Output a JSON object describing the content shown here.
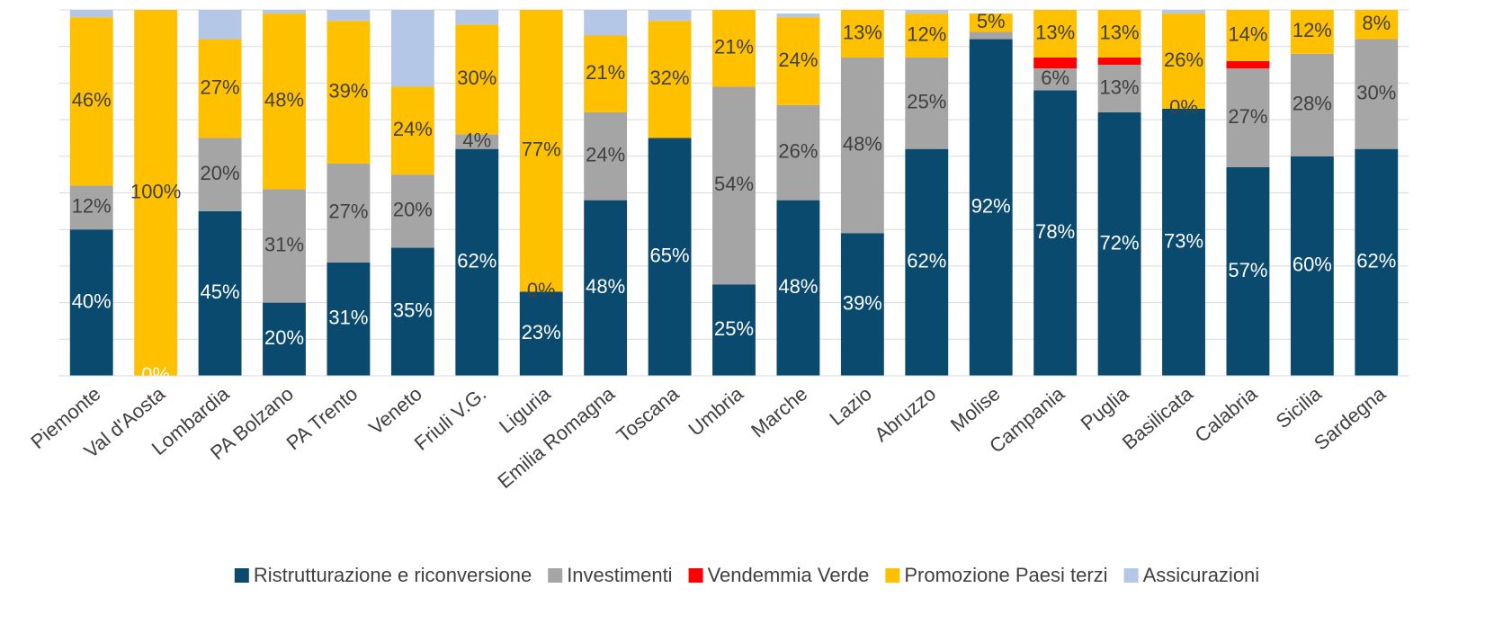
{
  "chart_data": {
    "type": "stacked_bar",
    "categories": [
      "Piemonte",
      "Val d'Aosta",
      "Lombardia",
      "PA Bolzano",
      "PA Trento",
      "Veneto",
      "Friuli V.G.",
      "Liguria",
      "Emilia Romagna",
      "Toscana",
      "Umbria",
      "Marche",
      "Lazio",
      "Abruzzo",
      "Molise",
      "Campania",
      "Puglia",
      "Basilicata",
      "Calabria",
      "Sicilia",
      "Sardegna"
    ],
    "series": [
      {
        "name": "Ristrutturazione e riconversione",
        "color": "#0b4a6f",
        "values": [
          40,
          0,
          45,
          20,
          31,
          35,
          62,
          23,
          48,
          65,
          25,
          48,
          39,
          62,
          92,
          78,
          72,
          73,
          57,
          60,
          62
        ],
        "value_labels": [
          "40%",
          "0%",
          "45%",
          "20%",
          "31%",
          "35%",
          "62%",
          "23%",
          "48%",
          "65%",
          "25%",
          "48%",
          "39%",
          "62%",
          "92%",
          "78%",
          "72%",
          "73%",
          "57%",
          "60%",
          "62%"
        ]
      },
      {
        "name": "Investimenti",
        "color": "#a5a5a5",
        "values": [
          12,
          0,
          20,
          31,
          27,
          20,
          4,
          0,
          24,
          0,
          54,
          26,
          48,
          25,
          2,
          6,
          13,
          0,
          27,
          28,
          30
        ],
        "value_labels": [
          "12%",
          null,
          "20%",
          "31%",
          "27%",
          "20%",
          "4%",
          "0%",
          "24%",
          null,
          "54%",
          "26%",
          "48%",
          "25%",
          null,
          "6%",
          "13%",
          "0%",
          "27%",
          "28%",
          "30%"
        ]
      },
      {
        "name": "Vendemmia Verde",
        "color": "#ff0000",
        "values": [
          0,
          0,
          0,
          0,
          0,
          0,
          0,
          0,
          0,
          0,
          0,
          0,
          0,
          0,
          0,
          3,
          2,
          0,
          2,
          0,
          0
        ]
      },
      {
        "name": "Promozione Paesi terzi",
        "color": "#ffc000",
        "values": [
          46,
          100,
          27,
          48,
          39,
          24,
          30,
          77,
          21,
          32,
          21,
          24,
          13,
          12,
          5,
          13,
          13,
          26,
          14,
          12,
          8
        ],
        "value_labels": [
          "46%",
          "100%",
          "27%",
          "48%",
          "39%",
          "24%",
          "30%",
          "77%",
          "21%",
          "32%",
          "21%",
          "24%",
          "13%",
          "12%",
          "5%",
          "13%",
          "13%",
          "26%",
          "14%",
          "12%",
          "8%"
        ]
      },
      {
        "name": "Assicurazioni",
        "color": "#b4c7e7",
        "values": [
          2,
          0,
          8,
          1,
          3,
          21,
          4,
          0,
          7,
          3,
          0,
          1,
          0,
          1,
          0,
          0,
          0,
          1,
          0,
          0,
          0
        ]
      }
    ],
    "ylim": [
      0,
      100
    ],
    "yticks": [
      0,
      10,
      20,
      30,
      40,
      50,
      60,
      70,
      80,
      90,
      100
    ],
    "grid": true,
    "legend": "bottom"
  }
}
